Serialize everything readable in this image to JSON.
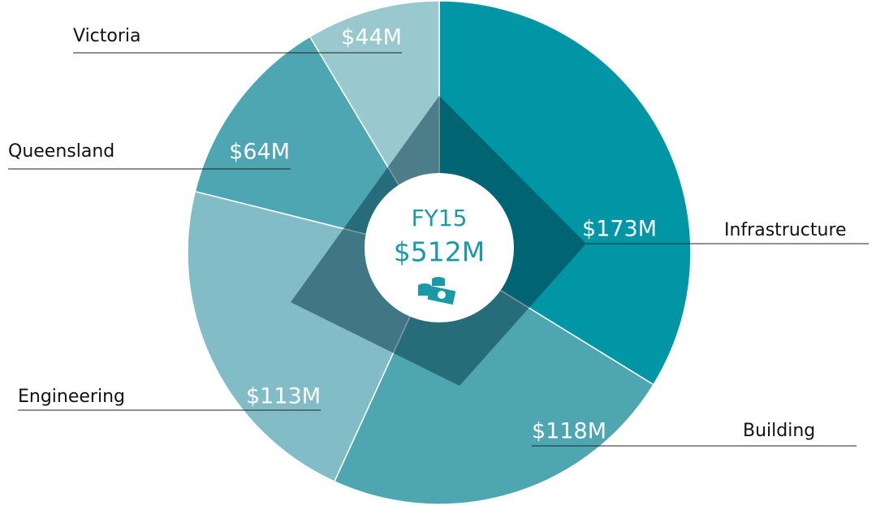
{
  "chart_data": {
    "type": "pie",
    "categories": [
      "Infrastructure",
      "Building",
      "Engineering",
      "Queensland",
      "Victoria"
    ],
    "values": [
      173,
      118,
      113,
      64,
      44
    ],
    "value_labels": [
      "$173M",
      "$118M",
      "$113M",
      "$64M",
      "$44M"
    ],
    "colors": [
      "#0096a5",
      "#4ea6b1",
      "#82bcc6",
      "#4ea6b2",
      "#99c8cf"
    ],
    "center_title": "FY15",
    "center_value_label": "$512M"
  }
}
